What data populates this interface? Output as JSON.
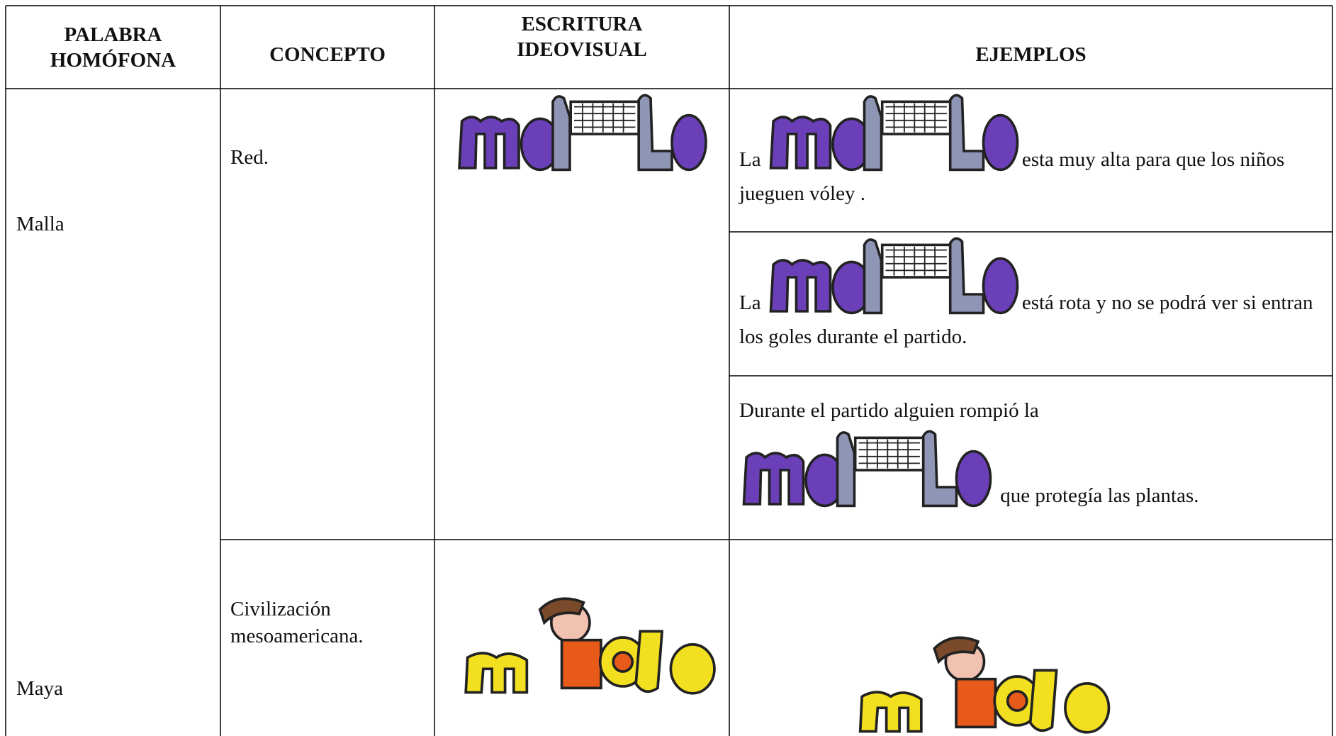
{
  "table": {
    "headers": [
      "PALABRA HOMÓFONA",
      "CONCEPTO",
      "ESCRITURA IDEOVISUAL",
      "EJEMPLOS"
    ],
    "rows": [
      {
        "palabra": "Malla",
        "concepto": "Red.",
        "ejemplos": [
          {
            "antes": "La",
            "despues": "esta muy alta para que los niños jueguen vóley ."
          },
          {
            "antes": "La",
            "despues": "está rota y no se podrá ver si entran los goles durante el partido."
          },
          {
            "antes": "Durante el partido alguien rompió la",
            "despues": "que protegía las plantas."
          }
        ]
      },
      {
        "palabra": "Maya",
        "concepto": "Civilización mesoamericana."
      }
    ]
  }
}
